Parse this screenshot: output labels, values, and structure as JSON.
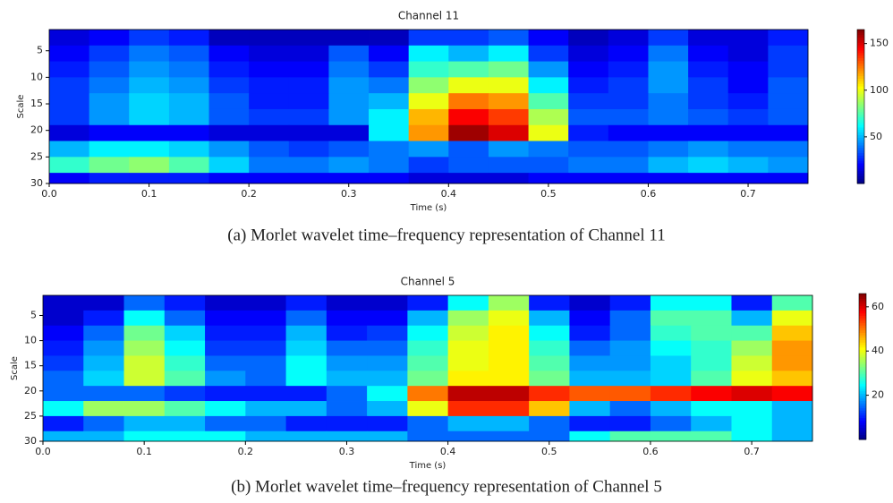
{
  "chart_data": [
    {
      "type": "heatmap",
      "title": "Channel 11",
      "xlabel": "Time (s)",
      "ylabel": "Scale",
      "caption": "(a) Morlet wavelet time–frequency representation of Channel 11",
      "colormap": "jet",
      "clim": [
        0,
        165
      ],
      "cticks": [
        50,
        100,
        150
      ],
      "xlim": [
        0,
        0.76
      ],
      "ylim": [
        30,
        1
      ],
      "xticks": [
        {
          "value": 0,
          "label": "0.0"
        },
        0.1,
        0.2,
        0.3,
        0.4,
        0.5,
        0.6,
        0.7
      ],
      "yticks": [
        5,
        10,
        15,
        20,
        25,
        30
      ],
      "xbins": [
        0,
        0.04,
        0.08,
        0.12,
        0.16,
        0.2,
        0.24,
        0.28,
        0.32,
        0.36,
        0.4,
        0.44,
        0.48,
        0.52,
        0.56,
        0.6,
        0.64,
        0.68,
        0.72,
        0.76
      ],
      "ybins": [
        1,
        4,
        7,
        10,
        13,
        16,
        19,
        22,
        25,
        28,
        30
      ],
      "z": [
        [
          15,
          20,
          30,
          25,
          10,
          10,
          10,
          10,
          10,
          30,
          30,
          35,
          20,
          10,
          15,
          30,
          15,
          15,
          25
        ],
        [
          20,
          30,
          40,
          35,
          20,
          15,
          15,
          35,
          20,
          60,
          50,
          60,
          30,
          15,
          20,
          40,
          20,
          15,
          30
        ],
        [
          25,
          35,
          45,
          40,
          25,
          20,
          20,
          40,
          30,
          70,
          75,
          80,
          45,
          20,
          25,
          45,
          25,
          20,
          30
        ],
        [
          30,
          40,
          50,
          45,
          30,
          25,
          25,
          45,
          40,
          85,
          100,
          100,
          60,
          25,
          30,
          45,
          30,
          20,
          35
        ],
        [
          30,
          45,
          55,
          50,
          35,
          25,
          25,
          45,
          50,
          100,
          125,
          120,
          75,
          30,
          30,
          40,
          30,
          25,
          35
        ],
        [
          30,
          45,
          55,
          50,
          35,
          30,
          30,
          45,
          60,
          115,
          145,
          135,
          90,
          35,
          35,
          40,
          35,
          30,
          35
        ],
        [
          15,
          20,
          20,
          20,
          15,
          15,
          15,
          15,
          60,
          120,
          160,
          150,
          100,
          25,
          20,
          20,
          20,
          20,
          20
        ],
        [
          50,
          60,
          60,
          55,
          45,
          35,
          30,
          35,
          40,
          45,
          35,
          45,
          40,
          35,
          35,
          40,
          45,
          40,
          40
        ],
        [
          70,
          80,
          85,
          75,
          55,
          40,
          40,
          45,
          40,
          30,
          35,
          35,
          35,
          40,
          40,
          50,
          55,
          50,
          45
        ],
        [
          20,
          25,
          25,
          25,
          20,
          20,
          20,
          20,
          20,
          15,
          15,
          15,
          20,
          20,
          20,
          20,
          20,
          20,
          20
        ]
      ]
    },
    {
      "type": "heatmap",
      "title": "Channel 5",
      "xlabel": "Time (s)",
      "ylabel": "Scale",
      "caption": "(b) Morlet wavelet time–frequency representation of Channel 5",
      "colormap": "jet",
      "clim": [
        0,
        66
      ],
      "cticks": [
        20,
        40,
        60
      ],
      "xlim": [
        0,
        0.76
      ],
      "ylim": [
        30,
        1
      ],
      "xticks": [
        {
          "value": 0,
          "label": "0.0"
        },
        0.1,
        0.2,
        0.3,
        0.4,
        0.5,
        0.6,
        0.7
      ],
      "yticks": [
        5,
        10,
        15,
        20,
        25,
        30
      ],
      "xbins": [
        0,
        0.04,
        0.08,
        0.12,
        0.16,
        0.2,
        0.24,
        0.28,
        0.32,
        0.36,
        0.4,
        0.44,
        0.48,
        0.52,
        0.56,
        0.6,
        0.64,
        0.68,
        0.72,
        0.76
      ],
      "ybins": [
        1,
        4,
        7,
        10,
        13,
        16,
        19,
        22,
        25,
        28,
        30
      ],
      "z": [
        [
          5,
          5,
          15,
          10,
          5,
          5,
          10,
          5,
          5,
          10,
          25,
          35,
          10,
          5,
          10,
          25,
          25,
          10,
          30
        ],
        [
          5,
          10,
          25,
          15,
          8,
          8,
          15,
          8,
          8,
          20,
          35,
          40,
          20,
          8,
          15,
          30,
          30,
          20,
          40
        ],
        [
          8,
          15,
          32,
          22,
          10,
          10,
          20,
          10,
          12,
          25,
          38,
          42,
          25,
          10,
          15,
          28,
          30,
          30,
          45
        ],
        [
          10,
          18,
          35,
          25,
          12,
          12,
          22,
          15,
          15,
          28,
          40,
          42,
          28,
          15,
          18,
          25,
          28,
          35,
          48
        ],
        [
          12,
          20,
          38,
          28,
          15,
          15,
          25,
          18,
          18,
          30,
          40,
          42,
          30,
          18,
          18,
          22,
          28,
          38,
          48
        ],
        [
          15,
          22,
          38,
          30,
          18,
          15,
          25,
          20,
          20,
          32,
          42,
          42,
          32,
          20,
          20,
          22,
          30,
          40,
          45
        ],
        [
          15,
          15,
          15,
          12,
          10,
          10,
          10,
          15,
          25,
          50,
          62,
          62,
          55,
          52,
          52,
          55,
          58,
          60,
          58
        ],
        [
          25,
          35,
          35,
          30,
          25,
          20,
          20,
          15,
          20,
          40,
          55,
          55,
          45,
          20,
          15,
          20,
          25,
          25,
          20
        ],
        [
          10,
          15,
          20,
          20,
          15,
          15,
          10,
          10,
          10,
          15,
          20,
          20,
          15,
          10,
          10,
          15,
          20,
          25,
          20
        ],
        [
          20,
          20,
          25,
          25,
          25,
          20,
          20,
          20,
          20,
          15,
          15,
          15,
          15,
          25,
          30,
          30,
          30,
          25,
          20
        ]
      ]
    }
  ]
}
